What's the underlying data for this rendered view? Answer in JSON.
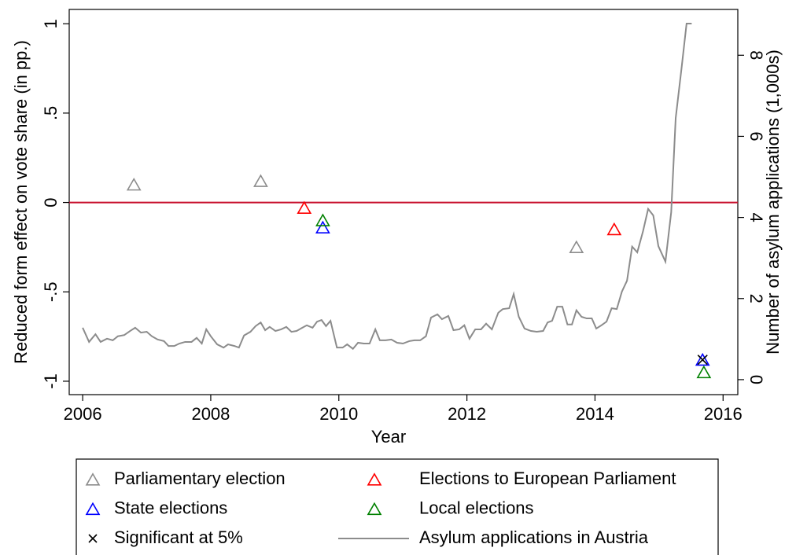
{
  "chart_data": {
    "type": "scatter",
    "x_label": "Year",
    "y_label": "Reduced form effect on vote share (in pp.)",
    "y2_label": "Number of asylum applications (1,000s)",
    "xlim": [
      2005.79,
      2016.23
    ],
    "xticks": [
      2006,
      2008,
      2010,
      2012,
      2014,
      2016
    ],
    "ylim": [
      -1.075,
      1.08
    ],
    "yticks": [
      {
        "value": -1,
        "label": "-1"
      },
      {
        "value": -0.5,
        "label": "-.5"
      },
      0,
      {
        "value": 0.5,
        "label": ".5"
      },
      1
    ],
    "y2lim": [
      -0.37,
      9.13
    ],
    "y2ticks": [
      0,
      2,
      4,
      6,
      8
    ],
    "reference_line": {
      "y": 0,
      "color": "#c8102e"
    },
    "series": [
      {
        "name": "Parliamentary election",
        "color": "#8c8c8c",
        "marker": "triangle",
        "x": [
          2006.8,
          2008.78,
          2013.71
        ],
        "values": [
          0.1,
          0.12,
          -0.25
        ]
      },
      {
        "name": "Elections to European Parliament",
        "color": "#ff0000",
        "marker": "triangle",
        "x": [
          2009.46,
          2014.3
        ],
        "values": [
          -0.03,
          -0.15
        ]
      },
      {
        "name": "State elections",
        "color": "#0000ff",
        "marker": "triangle",
        "x": [
          2009.75,
          2015.68
        ],
        "values": [
          -0.14,
          -0.88
        ]
      },
      {
        "name": "Local elections",
        "color": "#008000",
        "marker": "triangle",
        "x": [
          2009.75,
          2015.7
        ],
        "values": [
          -0.1,
          -0.95
        ]
      },
      {
        "name": "Significant at 5%",
        "color": "#000000",
        "marker": "x",
        "x": [
          2015.68
        ],
        "values": [
          -0.88
        ]
      },
      {
        "name": "Asylum applications in Austria",
        "color": "#8c8c8c",
        "marker": "line",
        "axis": "y2",
        "x": [
          2006.0,
          2006.1,
          2006.2,
          2006.28,
          2006.38,
          2006.47,
          2006.55,
          2006.65,
          2006.74,
          2006.82,
          2006.91,
          2007.0,
          2007.08,
          2007.17,
          2007.27,
          2007.34,
          2007.43,
          2007.51,
          2007.6,
          2007.7,
          2007.78,
          2007.86,
          2007.93,
          2008.0,
          2008.1,
          2008.2,
          2008.27,
          2008.37,
          2008.44,
          2008.52,
          2008.62,
          2008.7,
          2008.78,
          2008.85,
          2008.92,
          2009.01,
          2009.1,
          2009.18,
          2009.26,
          2009.34,
          2009.43,
          2009.5,
          2009.59,
          2009.66,
          2009.73,
          2009.8,
          2009.87,
          2009.97,
          2010.06,
          2010.13,
          2010.22,
          2010.3,
          2010.39,
          2010.48,
          2010.57,
          2010.64,
          2010.73,
          2010.82,
          2010.91,
          2011.0,
          2011.1,
          2011.18,
          2011.27,
          2011.36,
          2011.44,
          2011.54,
          2011.61,
          2011.71,
          2011.79,
          2011.88,
          2011.96,
          2012.04,
          2012.13,
          2012.22,
          2012.3,
          2012.39,
          2012.49,
          2012.56,
          2012.66,
          2012.73,
          2012.81,
          2012.9,
          2013.0,
          2013.09,
          2013.19,
          2013.26,
          2013.33,
          2013.41,
          2013.49,
          2013.57,
          2013.64,
          2013.71,
          2013.79,
          2013.87,
          2013.95,
          2014.02,
          2014.1,
          2014.18,
          2014.26,
          2014.34,
          2014.42,
          2014.5,
          2014.58,
          2014.66,
          2014.75,
          2014.83,
          2014.91,
          2014.99,
          2015.1,
          2015.19,
          2015.26,
          2015.35,
          2015.43,
          2015.51
        ],
        "values": [
          1.28,
          0.93,
          1.12,
          0.93,
          1.01,
          0.97,
          1.07,
          1.1,
          1.2,
          1.28,
          1.16,
          1.18,
          1.07,
          0.99,
          0.95,
          0.83,
          0.83,
          0.89,
          0.93,
          0.93,
          1.03,
          0.89,
          1.24,
          1.07,
          0.87,
          0.79,
          0.87,
          0.83,
          0.79,
          1.09,
          1.18,
          1.32,
          1.41,
          1.22,
          1.3,
          1.2,
          1.24,
          1.3,
          1.18,
          1.2,
          1.28,
          1.34,
          1.28,
          1.43,
          1.47,
          1.32,
          1.45,
          0.79,
          0.79,
          0.87,
          0.76,
          0.91,
          0.89,
          0.89,
          1.24,
          0.97,
          0.97,
          0.99,
          0.91,
          0.89,
          0.95,
          0.97,
          0.97,
          1.07,
          1.53,
          1.61,
          1.49,
          1.57,
          1.22,
          1.24,
          1.34,
          1.01,
          1.24,
          1.24,
          1.38,
          1.24,
          1.65,
          1.74,
          1.76,
          2.11,
          1.55,
          1.26,
          1.2,
          1.18,
          1.2,
          1.41,
          1.45,
          1.8,
          1.8,
          1.36,
          1.36,
          1.71,
          1.55,
          1.51,
          1.51,
          1.26,
          1.34,
          1.43,
          1.76,
          1.74,
          2.17,
          2.44,
          3.28,
          3.14,
          3.66,
          4.21,
          4.05,
          3.29,
          2.91,
          4.13,
          6.45,
          7.66,
          8.78,
          8.78
        ]
      }
    ]
  }
}
